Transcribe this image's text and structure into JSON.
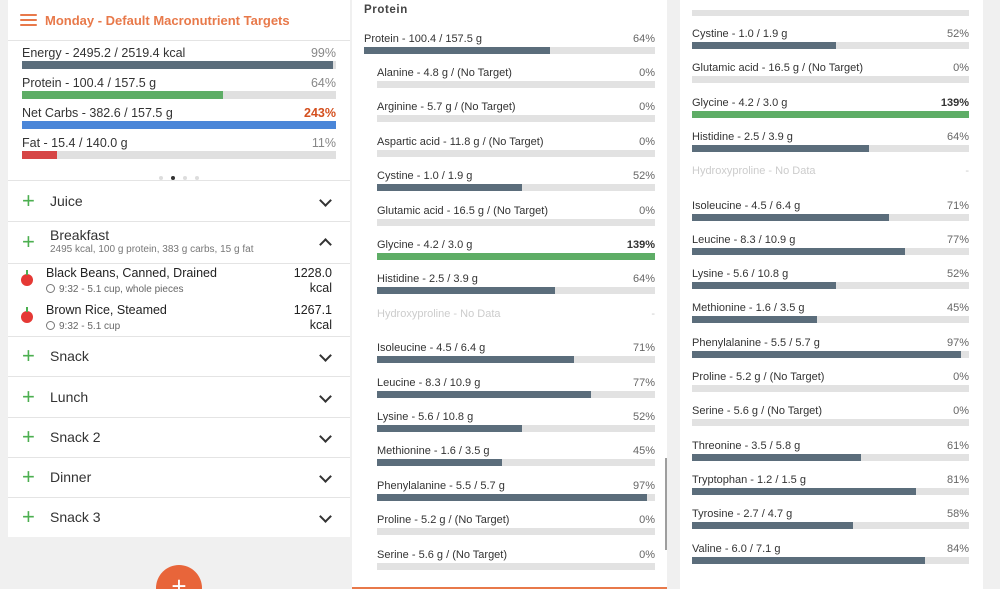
{
  "header": {
    "title": "Monday - Default Macronutrient Targets"
  },
  "colors": {
    "accent": "#e8794a",
    "gray_fill": "#5b6d7b",
    "green_fill": "#5ead66",
    "blue_fill": "#4a86d8",
    "red_fill": "#d64545"
  },
  "targets": [
    {
      "label": "Energy - 2495.2 / 2519.4 kcal",
      "pct": "99%",
      "value": 99,
      "color": "gray"
    },
    {
      "label": "Protein - 100.4 / 157.5 g",
      "pct": "64%",
      "value": 64,
      "color": "green"
    },
    {
      "label": "Net Carbs - 382.6 / 157.5 g",
      "pct": "243%",
      "value": 100,
      "color": "blue",
      "over": true
    },
    {
      "label": "Fat - 15.4 / 140.0 g",
      "pct": "11%",
      "value": 11,
      "color": "red"
    }
  ],
  "meals": {
    "juice": "Juice",
    "breakfast": {
      "name": "Breakfast",
      "summary": "2495 kcal, 100 g protein, 383 g carbs, 15 g fat"
    },
    "snack": "Snack",
    "lunch": "Lunch",
    "snack2": "Snack 2",
    "dinner": "Dinner",
    "snack3": "Snack 3"
  },
  "foods": [
    {
      "name": "Black Beans, Canned, Drained",
      "detail": "9:32 - 5.1 cup, whole pieces",
      "kcal": "1228.0",
      "unit": "kcal"
    },
    {
      "name": "Brown Rice, Steamed",
      "detail": "9:32 - 5.1 cup",
      "kcal": "1267.1",
      "unit": "kcal"
    }
  ],
  "fab_label": "+",
  "protein_section": {
    "title": "Protein",
    "total": {
      "label": "Protein - 100.4 / 157.5 g",
      "pct": "64%",
      "value": 64
    },
    "items": [
      {
        "label": "Alanine - 4.8 g / (No Target)",
        "pct": "0%",
        "value": 0
      },
      {
        "label": "Arginine - 5.7 g / (No Target)",
        "pct": "0%",
        "value": 0
      },
      {
        "label": "Aspartic acid - 11.8 g / (No Target)",
        "pct": "0%",
        "value": 0
      },
      {
        "label": "Cystine - 1.0 / 1.9 g",
        "pct": "52%",
        "value": 52
      },
      {
        "label": "Glutamic acid - 16.5 g / (No Target)",
        "pct": "0%",
        "value": 0
      },
      {
        "label": "Glycine - 4.2 / 3.0 g",
        "pct": "139%",
        "value": 100,
        "green": true,
        "bold": true
      },
      {
        "label": "Histidine - 2.5 / 3.9 g",
        "pct": "64%",
        "value": 64
      },
      {
        "label": "Hydroxyproline - No Data",
        "pct": "-",
        "value": 0,
        "nodata": true
      },
      {
        "label": "Isoleucine - 4.5 / 6.4 g",
        "pct": "71%",
        "value": 71
      },
      {
        "label": "Leucine - 8.3 / 10.9 g",
        "pct": "77%",
        "value": 77
      },
      {
        "label": "Lysine - 5.6 / 10.8 g",
        "pct": "52%",
        "value": 52
      },
      {
        "label": "Methionine - 1.6 / 3.5 g",
        "pct": "45%",
        "value": 45
      },
      {
        "label": "Phenylalanine - 5.5 / 5.7 g",
        "pct": "97%",
        "value": 97
      },
      {
        "label": "Proline - 5.2 g / (No Target)",
        "pct": "0%",
        "value": 0
      },
      {
        "label": "Serine - 5.6 g / (No Target)",
        "pct": "0%",
        "value": 0
      }
    ]
  },
  "right_items": [
    {
      "label": "Cystine - 1.0 / 1.9 g",
      "pct": "52%",
      "value": 52
    },
    {
      "label": "Glutamic acid - 16.5 g / (No Target)",
      "pct": "0%",
      "value": 0
    },
    {
      "label": "Glycine - 4.2 / 3.0 g",
      "pct": "139%",
      "value": 100,
      "green": true,
      "bold": true
    },
    {
      "label": "Histidine - 2.5 / 3.9 g",
      "pct": "64%",
      "value": 64
    },
    {
      "label": "Hydroxyproline - No Data",
      "pct": "-",
      "value": 0,
      "nodata": true
    },
    {
      "label": "Isoleucine - 4.5 / 6.4 g",
      "pct": "71%",
      "value": 71
    },
    {
      "label": "Leucine - 8.3 / 10.9 g",
      "pct": "77%",
      "value": 77
    },
    {
      "label": "Lysine - 5.6 / 10.8 g",
      "pct": "52%",
      "value": 52
    },
    {
      "label": "Methionine - 1.6 / 3.5 g",
      "pct": "45%",
      "value": 45
    },
    {
      "label": "Phenylalanine - 5.5 / 5.7 g",
      "pct": "97%",
      "value": 97
    },
    {
      "label": "Proline - 5.2 g / (No Target)",
      "pct": "0%",
      "value": 0
    },
    {
      "label": "Serine - 5.6 g / (No Target)",
      "pct": "0%",
      "value": 0
    },
    {
      "label": "Threonine - 3.5 / 5.8 g",
      "pct": "61%",
      "value": 61
    },
    {
      "label": "Tryptophan - 1.2 / 1.5 g",
      "pct": "81%",
      "value": 81
    },
    {
      "label": "Tyrosine - 2.7 / 4.7 g",
      "pct": "58%",
      "value": 58
    },
    {
      "label": "Valine - 6.0 / 7.1 g",
      "pct": "84%",
      "value": 84
    }
  ]
}
